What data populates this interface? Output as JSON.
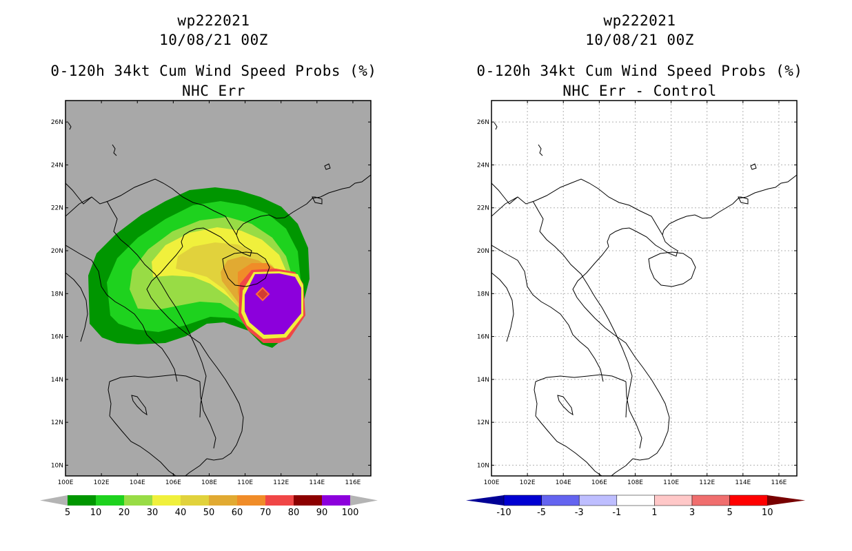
{
  "left": {
    "storm_id": "wp222021",
    "datetime": "10/08/21 00Z",
    "product": "0-120h 34kt Cum Wind Speed Probs (%)",
    "subtitle": "NHC Err",
    "legend": {
      "labels": [
        "5",
        "10",
        "20",
        "30",
        "40",
        "50",
        "60",
        "70",
        "80",
        "90",
        "100"
      ],
      "colors": [
        "#009600",
        "#1ed21e",
        "#98dc45",
        "#f0f03c",
        "#e1d23c",
        "#e1aa32",
        "#f08c28",
        "#f04646",
        "#8c0000",
        "#8c00dc"
      ],
      "end_color": "#b4b4b4"
    },
    "background_color": "#a8a8a8"
  },
  "right": {
    "storm_id": "wp222021",
    "datetime": "10/08/21 00Z",
    "product": "0-120h 34kt Cum Wind Speed Probs (%)",
    "subtitle": "NHC Err - Control",
    "legend": {
      "labels": [
        "-10",
        "-5",
        "-3",
        "-1",
        "1",
        "3",
        "5",
        "10"
      ],
      "colors": [
        "#0000d2",
        "#6464f0",
        "#bebeff",
        "#ffffff",
        "#ffc8c8",
        "#f06e6e",
        "#ff0000"
      ],
      "left_end_color": "#000096",
      "right_end_color": "#780000"
    },
    "background_color": "#ffffff"
  },
  "axes": {
    "lon_labels": [
      "100E",
      "102E",
      "104E",
      "106E",
      "108E",
      "110E",
      "112E",
      "114E",
      "116E"
    ],
    "lat_labels": [
      "10N",
      "12N",
      "14N",
      "16N",
      "18N",
      "20N",
      "22N",
      "24N",
      "26N"
    ],
    "lon_range": [
      100,
      117
    ],
    "lat_range": [
      9.5,
      27
    ]
  },
  "storm_center": {
    "lon": 111.0,
    "lat": 18.0
  }
}
